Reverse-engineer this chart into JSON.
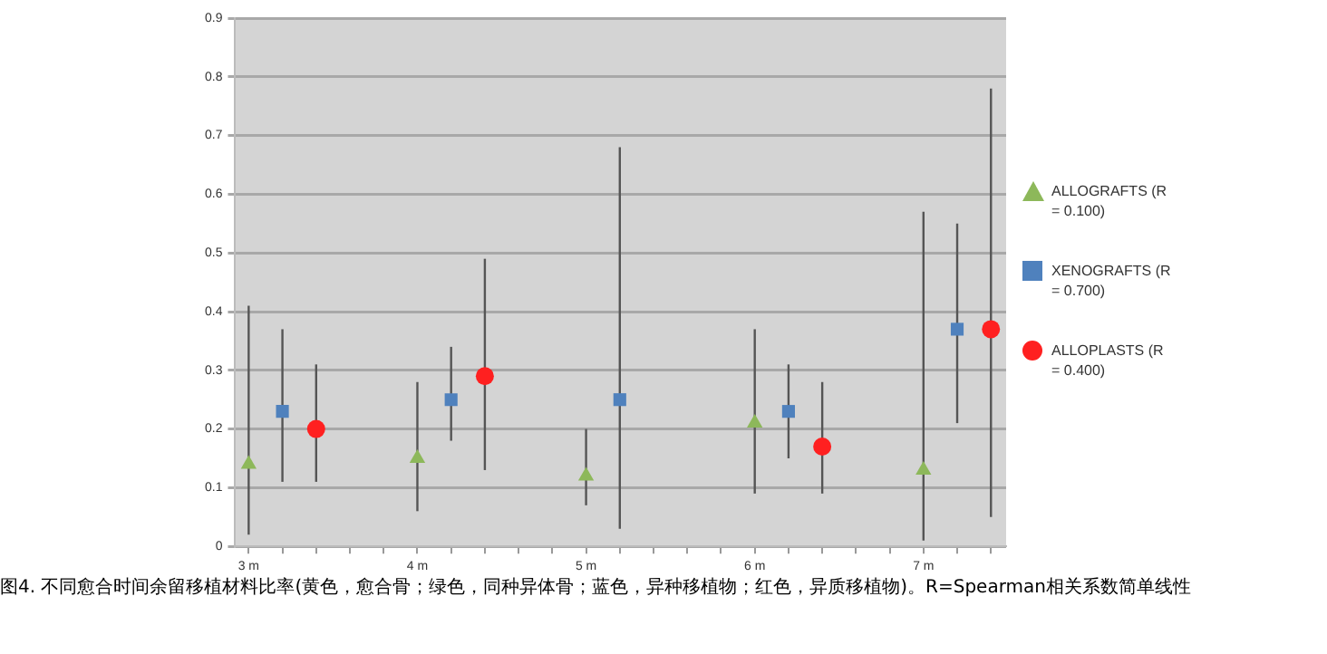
{
  "chart_data": {
    "type": "scatter",
    "xlim": [
      2.92,
      7.49
    ],
    "xticks": [
      {
        "value": 3,
        "label": "3 m"
      },
      {
        "value": 3.2,
        "label": null
      },
      {
        "value": 3.4,
        "label": null
      },
      {
        "value": 3.6,
        "label": null
      },
      {
        "value": 3.8,
        "label": null
      },
      {
        "value": 4,
        "label": "4 m"
      },
      {
        "value": 4.2,
        "label": null
      },
      {
        "value": 4.4,
        "label": null
      },
      {
        "value": 4.6,
        "label": null
      },
      {
        "value": 4.8,
        "label": null
      },
      {
        "value": 5,
        "label": "5 m"
      },
      {
        "value": 5.2,
        "label": null
      },
      {
        "value": 5.4,
        "label": null
      },
      {
        "value": 5.6,
        "label": null
      },
      {
        "value": 5.8,
        "label": null
      },
      {
        "value": 6,
        "label": "6 m"
      },
      {
        "value": 6.2,
        "label": null
      },
      {
        "value": 6.4,
        "label": null
      },
      {
        "value": 6.6,
        "label": null
      },
      {
        "value": 6.8,
        "label": null
      },
      {
        "value": 7,
        "label": "7 m"
      },
      {
        "value": 7.2,
        "label": null
      },
      {
        "value": 7.4,
        "label": null
      }
    ],
    "ylim": [
      0,
      0.9
    ],
    "yticks": [
      0,
      0.1,
      0.2,
      0.3,
      0.4,
      0.5,
      0.6,
      0.7,
      0.8,
      0.9
    ],
    "grid": "y",
    "legend": "right",
    "series": [
      {
        "name": "ALLOGRAFTS (R = 0.100)",
        "color": "#8db85a",
        "marker": "triangle",
        "x": [
          3,
          4,
          5,
          6,
          7
        ],
        "values": [
          0.14,
          0.15,
          0.12,
          0.21,
          0.13
        ],
        "errors": [
          [
            0.02,
            0.41
          ],
          [
            0.06,
            0.28
          ],
          [
            0.07,
            0.2
          ],
          [
            0.09,
            0.37
          ],
          [
            0.01,
            0.57
          ]
        ]
      },
      {
        "name": "XENOGRAFTS (R = 0.700)",
        "color": "#4f81bd",
        "marker": "square",
        "x": [
          3.2,
          4.2,
          5.2,
          6.2,
          7.2
        ],
        "values": [
          0.23,
          0.25,
          0.25,
          0.23,
          0.37
        ],
        "errors": [
          [
            0.11,
            0.37
          ],
          [
            0.18,
            0.34
          ],
          [
            0.03,
            0.68
          ],
          [
            0.15,
            0.31
          ],
          [
            0.21,
            0.55
          ]
        ]
      },
      {
        "name": "ALLOPLASTS (R = 0.400)",
        "color": "#ff2020",
        "marker": "circle",
        "x": [
          3.4,
          4.4,
          6.4,
          7.4
        ],
        "values": [
          0.2,
          0.29,
          0.17,
          0.37
        ],
        "errors": [
          [
            0.11,
            0.31
          ],
          [
            0.13,
            0.49
          ],
          [
            0.09,
            0.28
          ],
          [
            0.05,
            0.78
          ]
        ]
      }
    ],
    "annotations": [
      "图4.  不同愈合时间余留移植材料比率(黄色，愈合骨；绿色，同种异体骨；蓝色，异种移植物；红色，异质移植物)。R=Spearman相关系数简单线性"
    ]
  }
}
